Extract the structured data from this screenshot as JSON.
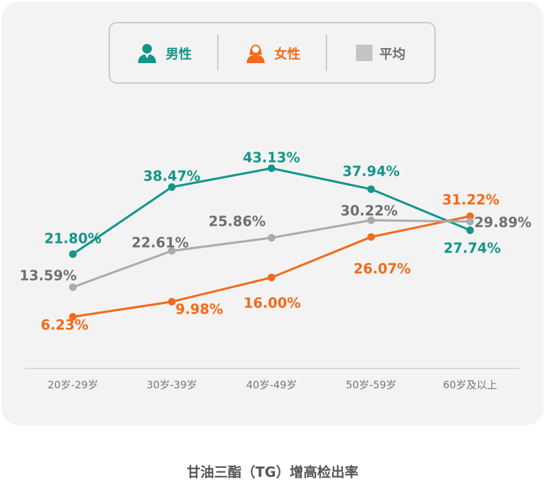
{
  "legend": {
    "male": {
      "label": "男性",
      "icon": "male-person-icon",
      "color": "#13968a"
    },
    "female": {
      "label": "女性",
      "icon": "female-person-icon",
      "color": "#f26a1b"
    },
    "average": {
      "label": "平均",
      "icon": "gray-square-icon",
      "color": "#ababab"
    }
  },
  "caption": "甘油三酯（TG）增高检出率",
  "chart_data": {
    "type": "line",
    "categories": [
      "20岁-29岁",
      "30岁-39岁",
      "40岁-49岁",
      "50岁-59岁",
      "60岁及以上"
    ],
    "series": [
      {
        "name": "男性",
        "color": "#13968a",
        "values": [
          21.8,
          38.47,
          43.13,
          37.94,
          27.74
        ],
        "labels": [
          "21.80%",
          "38.47%",
          "43.13%",
          "37.94%",
          "27.74%"
        ]
      },
      {
        "name": "女性",
        "color": "#f26a1b",
        "values": [
          6.23,
          9.98,
          16.0,
          26.07,
          31.22
        ],
        "labels": [
          "6.23%",
          "9.98%",
          "16.00%",
          "26.07%",
          "31.22%"
        ]
      },
      {
        "name": "平均",
        "color": "#ababab",
        "label_color": "#707070",
        "values": [
          13.59,
          22.61,
          25.86,
          30.22,
          29.89
        ],
        "labels": [
          "13.59%",
          "22.61%",
          "25.86%",
          "30.22%",
          "29.89%"
        ]
      }
    ],
    "ylim": [
      0,
      50
    ],
    "grid": false,
    "legend_position": "top"
  }
}
